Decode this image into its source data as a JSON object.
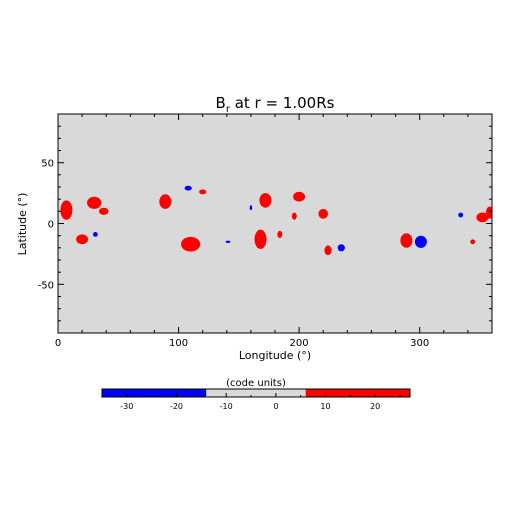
{
  "chart_data": {
    "type": "heatmap",
    "title": "B",
    "title_subscript": "r",
    "title_suffix": " at r = 1.00Rs",
    "xlabel": "Longitude (°)",
    "ylabel": "Latitude (°)",
    "xlim": [
      0,
      360
    ],
    "ylim": [
      -90,
      90
    ],
    "xticks": [
      0,
      100,
      200,
      300
    ],
    "yticks": [
      -50,
      0,
      50
    ],
    "background_value": 0,
    "colors": {
      "negative": "#0000ff",
      "neutral": "#d9d9d9",
      "positive": "#ff0000"
    },
    "colorbar": {
      "label": "(code units)",
      "range": [
        -35,
        27
      ],
      "ticks": [
        -30,
        -20,
        -10,
        0,
        10,
        20
      ],
      "segments": [
        {
          "from": -35,
          "to": -14,
          "color": "#0000ff"
        },
        {
          "from": -14,
          "to": 6,
          "color": "#d9d9d9"
        },
        {
          "from": 6,
          "to": 27,
          "color": "#ff0000"
        }
      ]
    },
    "patches": [
      {
        "lon": 7,
        "lat": 11,
        "dlon": 5,
        "dlat": 8,
        "sign": "positive"
      },
      {
        "lon": 20,
        "lat": -13,
        "dlon": 5,
        "dlat": 4,
        "sign": "positive"
      },
      {
        "lon": 30,
        "lat": 17,
        "dlon": 6,
        "dlat": 5,
        "sign": "positive"
      },
      {
        "lon": 38,
        "lat": 10,
        "dlon": 4,
        "dlat": 3,
        "sign": "positive"
      },
      {
        "lon": 31,
        "lat": -9,
        "dlon": 2,
        "dlat": 2,
        "sign": "negative"
      },
      {
        "lon": 89,
        "lat": 18,
        "dlon": 5,
        "dlat": 6,
        "sign": "positive"
      },
      {
        "lon": 108,
        "lat": 29,
        "dlon": 3,
        "dlat": 2,
        "sign": "negative"
      },
      {
        "lon": 120,
        "lat": 26,
        "dlon": 3,
        "dlat": 2,
        "sign": "positive"
      },
      {
        "lon": 110,
        "lat": -17,
        "dlon": 8,
        "dlat": 6,
        "sign": "positive"
      },
      {
        "lon": 141,
        "lat": -15,
        "dlon": 2,
        "dlat": 1,
        "sign": "negative"
      },
      {
        "lon": 160,
        "lat": 13,
        "dlon": 1,
        "dlat": 2,
        "sign": "negative"
      },
      {
        "lon": 172,
        "lat": 19,
        "dlon": 5,
        "dlat": 6,
        "sign": "positive"
      },
      {
        "lon": 168,
        "lat": -13,
        "dlon": 5,
        "dlat": 8,
        "sign": "positive"
      },
      {
        "lon": 184,
        "lat": -9,
        "dlon": 2,
        "dlat": 3,
        "sign": "positive"
      },
      {
        "lon": 196,
        "lat": 6,
        "dlon": 2,
        "dlat": 3,
        "sign": "positive"
      },
      {
        "lon": 200,
        "lat": 22,
        "dlon": 5,
        "dlat": 4,
        "sign": "positive"
      },
      {
        "lon": 220,
        "lat": 8,
        "dlon": 4,
        "dlat": 4,
        "sign": "positive"
      },
      {
        "lon": 224,
        "lat": -22,
        "dlon": 3,
        "dlat": 4,
        "sign": "positive"
      },
      {
        "lon": 235,
        "lat": -20,
        "dlon": 3,
        "dlat": 3,
        "sign": "negative"
      },
      {
        "lon": 289,
        "lat": -14,
        "dlon": 5,
        "dlat": 6,
        "sign": "positive"
      },
      {
        "lon": 301,
        "lat": -15,
        "dlon": 5,
        "dlat": 5,
        "sign": "negative"
      },
      {
        "lon": 334,
        "lat": 7,
        "dlon": 2,
        "dlat": 2,
        "sign": "negative"
      },
      {
        "lon": 344,
        "lat": -15,
        "dlon": 2,
        "dlat": 2,
        "sign": "positive"
      },
      {
        "lon": 352,
        "lat": 5,
        "dlon": 5,
        "dlat": 4,
        "sign": "positive"
      },
      {
        "lon": 358,
        "lat": 9,
        "dlon": 3,
        "dlat": 5,
        "sign": "positive"
      }
    ]
  }
}
